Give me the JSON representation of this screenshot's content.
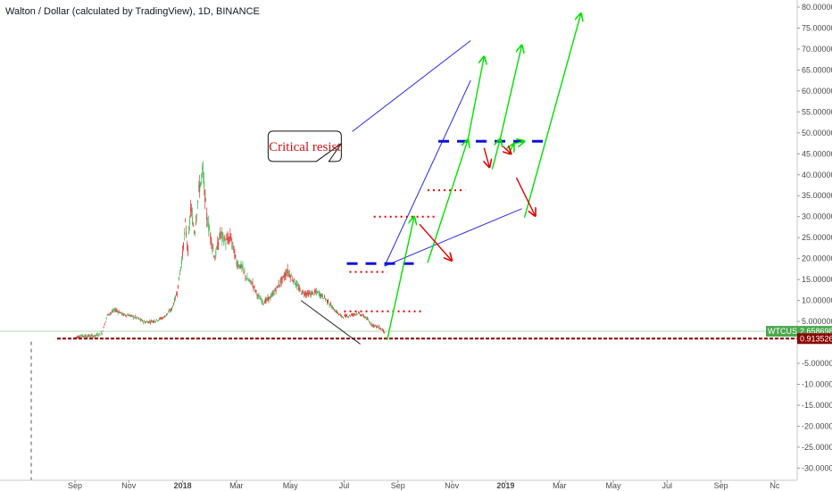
{
  "header": {
    "title": "Walton / Dollar (calculated by TradingView), 1D, BINANCE"
  },
  "chart_data": {
    "type": "candlestick",
    "symbol": "WTCUSD",
    "y_axis": {
      "ticks": [
        "80.000000",
        "75.000000",
        "70.000000",
        "65.000000",
        "60.000000",
        "55.000000",
        "50.000000",
        "45.000000",
        "40.000000",
        "35.000000",
        "30.000000",
        "25.000000",
        "20.000000",
        "15.000000",
        "10.000000",
        "5.000000",
        "-5.000000",
        "-10.000000",
        "-15.000000",
        "-20.000000",
        "-25.000000",
        "-30.000000"
      ],
      "tick_values": [
        80,
        75,
        70,
        65,
        60,
        55,
        50,
        45,
        40,
        35,
        30,
        25,
        20,
        15,
        10,
        5,
        -5,
        -10,
        -15,
        -20,
        -25,
        -30
      ],
      "ylim": [
        -32.9,
        81.7
      ]
    },
    "x_axis": {
      "labels": [
        "Sep",
        "Nov",
        "2018",
        "Mar",
        "May",
        "Jul",
        "Sep",
        "Nov",
        "2019",
        "Mar",
        "May",
        "Jul",
        "Sep",
        "Nc"
      ],
      "label_positions": [
        0,
        2,
        4,
        6,
        8,
        10,
        12,
        14,
        16,
        18,
        20,
        22,
        24,
        26
      ],
      "unit": "months since Sep 2017",
      "bold_labels": [
        "2018",
        "2019"
      ]
    },
    "price_badges": [
      {
        "name": "WTCUSD",
        "value": "2.658698",
        "bg_color": "#4ca84f",
        "y": 2.6587
      },
      {
        "name": "support",
        "value": "0.913526",
        "bg_color": "#8b0000",
        "y": 0.9135
      }
    ],
    "price_path": [
      [
        0.0,
        1.2
      ],
      [
        0.3,
        1.6
      ],
      [
        0.7,
        1.5
      ],
      [
        1.0,
        2.2
      ],
      [
        1.2,
        6.5
      ],
      [
        1.5,
        7.8
      ],
      [
        1.8,
        6.6
      ],
      [
        2.0,
        6.5
      ],
      [
        2.3,
        5.8
      ],
      [
        2.6,
        4.8
      ],
      [
        3.0,
        5.2
      ],
      [
        3.3,
        6.0
      ],
      [
        3.6,
        8.0
      ],
      [
        3.8,
        12.0
      ],
      [
        4.0,
        21.0
      ],
      [
        4.1,
        28.0
      ],
      [
        4.2,
        22.0
      ],
      [
        4.3,
        32.0
      ],
      [
        4.45,
        26.0
      ],
      [
        4.6,
        36.0
      ],
      [
        4.75,
        41.0
      ],
      [
        4.9,
        30.0
      ],
      [
        5.05,
        25.0
      ],
      [
        5.2,
        20.0
      ],
      [
        5.4,
        26.0
      ],
      [
        5.6,
        24.0
      ],
      [
        5.8,
        25.0
      ],
      [
        6.0,
        19.0
      ],
      [
        6.2,
        18.0
      ],
      [
        6.4,
        15.0
      ],
      [
        6.6,
        14.0
      ],
      [
        6.8,
        11.0
      ],
      [
        7.0,
        9.5
      ],
      [
        7.3,
        11.0
      ],
      [
        7.6,
        14.0
      ],
      [
        7.9,
        17.0
      ],
      [
        8.1,
        15.0
      ],
      [
        8.4,
        12.0
      ],
      [
        8.7,
        11.5
      ],
      [
        9.0,
        12.0
      ],
      [
        9.3,
        10.5
      ],
      [
        9.6,
        8.0
      ],
      [
        9.9,
        6.2
      ],
      [
        10.2,
        6.4
      ],
      [
        10.5,
        7.0
      ],
      [
        10.8,
        6.0
      ],
      [
        11.0,
        4.4
      ],
      [
        11.3,
        3.6
      ],
      [
        11.5,
        2.66
      ]
    ],
    "annotations": {
      "callout": {
        "text": "Critical resist",
        "point": [
          9.0,
          50
        ],
        "target": [
          9.9,
          47.5
        ]
      },
      "channel_lines": [
        {
          "from": [
            11.5,
            18.2
          ],
          "to": [
            14.7,
            62.5
          ]
        },
        {
          "from": [
            10.3,
            50.3
          ],
          "to": [
            14.7,
            72.0
          ]
        }
      ],
      "channel_lower": {
        "from": [
          11.5,
          18.2
        ],
        "to": [
          16.6,
          31.9
        ]
      },
      "support_line": {
        "y": 0.9135
      },
      "downtrend_line": {
        "from": [
          8.4,
          10.0
        ],
        "to": [
          10.6,
          -0.4
        ]
      },
      "blue_dashed_levels": [
        {
          "y": 18.8,
          "x1": 10.1,
          "x2": 12.8
        },
        {
          "y": 48.0,
          "x1": 13.5,
          "x2": 17.5
        }
      ],
      "red_dotted_levels": [
        {
          "y": 16.8,
          "x1": 10.2,
          "x2": 11.6
        },
        {
          "y": 7.4,
          "x1": 10.0,
          "x2": 12.9
        },
        {
          "y": 30.0,
          "x1": 11.1,
          "x2": 13.4
        },
        {
          "y": 36.3,
          "x1": 13.1,
          "x2": 14.5
        }
      ],
      "green_arrows": [
        {
          "from": [
            11.6,
            0.6
          ],
          "to": [
            12.6,
            30.0
          ]
        },
        {
          "from": [
            13.1,
            19.0
          ],
          "to": [
            14.6,
            48.4
          ]
        },
        {
          "from": [
            14.6,
            48.4
          ],
          "to": [
            15.2,
            68.2
          ]
        },
        {
          "from": [
            15.5,
            41.3
          ],
          "to": [
            15.8,
            48.6
          ]
        },
        {
          "from": [
            15.8,
            48.6
          ],
          "to": [
            16.6,
            70.9
          ]
        },
        {
          "from": [
            16.1,
            44.8
          ],
          "to": [
            16.3,
            47.4
          ]
        },
        {
          "from": [
            16.3,
            47.4
          ],
          "to": [
            16.7,
            48.0
          ]
        },
        {
          "from": [
            16.7,
            29.8
          ],
          "to": [
            18.8,
            78.5
          ]
        }
      ],
      "red_arrows": [
        {
          "from": [
            12.8,
            28.2
          ],
          "to": [
            14.0,
            19.5
          ]
        },
        {
          "from": [
            15.2,
            46.4
          ],
          "to": [
            15.4,
            41.8
          ]
        },
        {
          "from": [
            15.9,
            46.8
          ],
          "to": [
            16.2,
            45.0
          ]
        },
        {
          "from": [
            16.4,
            39.3
          ],
          "to": [
            17.1,
            30.2
          ]
        }
      ]
    }
  }
}
